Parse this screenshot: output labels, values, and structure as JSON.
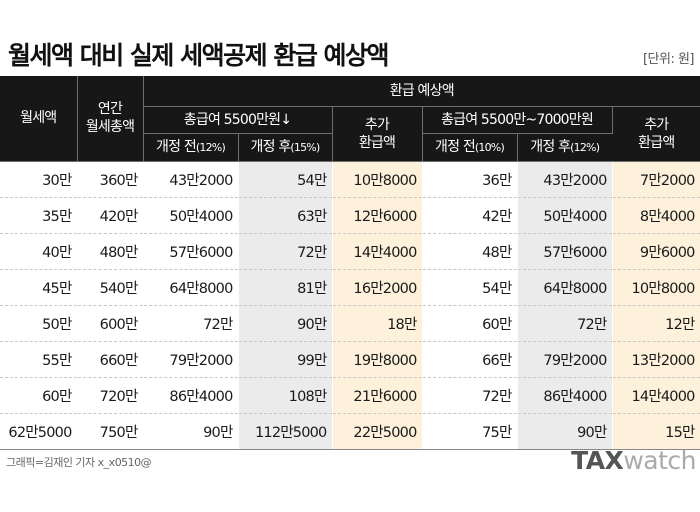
{
  "title": "월세액 대비 실제 세액공제 환급 예상액",
  "unit": "[단위: 원]",
  "headers": {
    "monthly_rent": "월세액",
    "annual_total_1": "연간",
    "annual_total_2": "월세총액",
    "refund_expected": "환급 예상액",
    "group1": "총급여 5500만원↓",
    "group2": "총급여 5500만~7000만원",
    "before_label": "개정 전",
    "after_label": "개정 후",
    "g1_before_rate": "(12%)",
    "g1_after_rate": "(15%)",
    "g2_before_rate": "(10%)",
    "g2_after_rate": "(12%)",
    "extra_1": "추가",
    "extra_2": "환급액"
  },
  "rows": [
    [
      "30만",
      "360만",
      "43만2000",
      "54만",
      "10만8000",
      "36만",
      "43만2000",
      "7만2000"
    ],
    [
      "35만",
      "420만",
      "50만4000",
      "63만",
      "12만6000",
      "42만",
      "50만4000",
      "8만4000"
    ],
    [
      "40만",
      "480만",
      "57만6000",
      "72만",
      "14만4000",
      "48만",
      "57만6000",
      "9만6000"
    ],
    [
      "45만",
      "540만",
      "64만8000",
      "81만",
      "16만2000",
      "54만",
      "64만8000",
      "10만8000"
    ],
    [
      "50만",
      "600만",
      "72만",
      "90만",
      "18만",
      "60만",
      "72만",
      "12만"
    ],
    [
      "55만",
      "660만",
      "79만2000",
      "99만",
      "19만8000",
      "66만",
      "79만2000",
      "13만2000"
    ],
    [
      "60만",
      "720만",
      "86만4000",
      "108만",
      "21만6000",
      "72만",
      "86만4000",
      "14만4000"
    ],
    [
      "62만5000",
      "750만",
      "90만",
      "112만5000",
      "22만5000",
      "75만",
      "90만",
      "15만"
    ]
  ],
  "footer": {
    "credit": "그래픽=김재인 기자 x_x0510@",
    "logo_bold": "TAX",
    "logo_light": "watch"
  },
  "colors": {
    "header_bg": "#171717",
    "after_col_bg": "#ebebeb",
    "extra_col_bg": "#fdf1dc"
  }
}
